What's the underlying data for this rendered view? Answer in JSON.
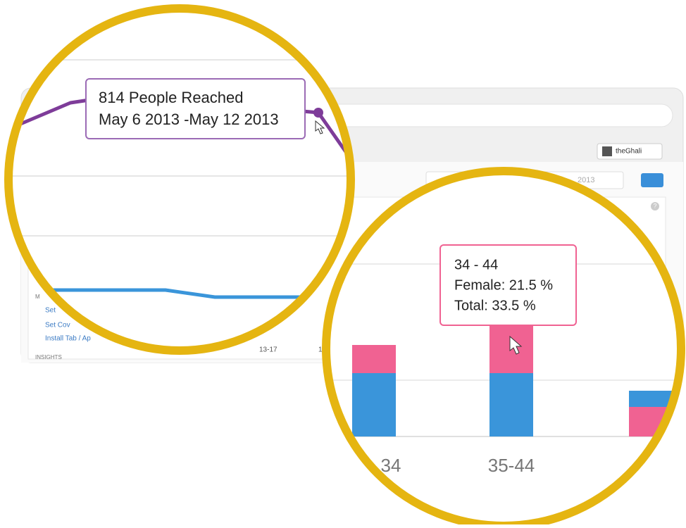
{
  "background": {
    "user_button": "theGhali",
    "date_select": "2013",
    "help": "?",
    "sidebar": {
      "heading_partial": "M",
      "links": [
        "Set",
        "Set Cov",
        "Install Tab / Ap"
      ],
      "section": "INSIGHTS"
    },
    "axis_labels": [
      "13-17",
      "1"
    ]
  },
  "reach_zoom": {
    "tooltip": {
      "line1": "814 People Reached",
      "line2": "May 6 2013 -May 12 2013"
    }
  },
  "age_zoom": {
    "tooltip": {
      "title": "34 - 44",
      "female": "Female: 21.5 %",
      "total": "Total: 33.5 %"
    },
    "axis_labels": [
      "34",
      "35-44"
    ]
  }
}
